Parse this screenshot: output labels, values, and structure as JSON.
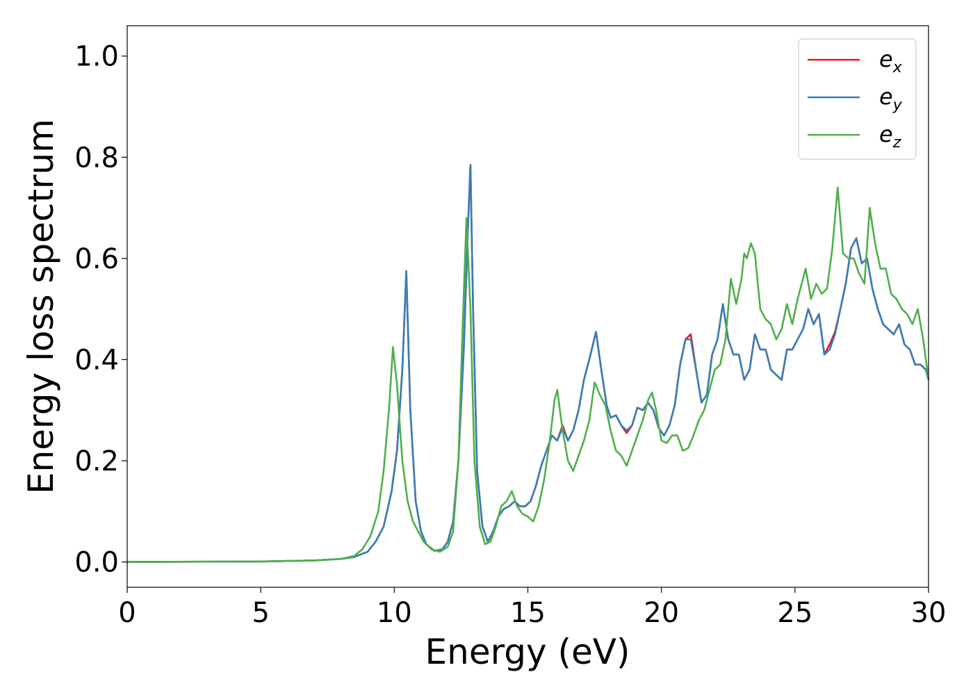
{
  "chart_data": {
    "type": "line",
    "xlabel": "Energy (eV)",
    "ylabel": "Energy loss spectrum",
    "xlim": [
      0,
      30
    ],
    "ylim": [
      -0.05,
      1.06
    ],
    "xticks": [
      "0",
      "5",
      "10",
      "15",
      "20",
      "25",
      "30"
    ],
    "yticks": [
      "0.0",
      "0.2",
      "0.4",
      "0.6",
      "0.8",
      "1.0"
    ],
    "grid": false,
    "legend_position": "top-right",
    "series": [
      {
        "name": "e",
        "subscript": "x",
        "color": "#e41a1c",
        "x": [
          0,
          5,
          7,
          8,
          8.5,
          9,
          9.3,
          9.6,
          9.9,
          10.1,
          10.3,
          10.45,
          10.6,
          10.8,
          11.0,
          11.2,
          11.5,
          11.8,
          12.0,
          12.2,
          12.4,
          12.6,
          12.75,
          12.85,
          12.95,
          13.1,
          13.3,
          13.5,
          13.7,
          13.9,
          14.1,
          14.3,
          14.5,
          14.7,
          14.9,
          15.1,
          15.3,
          15.5,
          15.7,
          15.9,
          16.1,
          16.3,
          16.5,
          16.7,
          16.9,
          17.1,
          17.3,
          17.55,
          17.75,
          17.95,
          18.1,
          18.3,
          18.5,
          18.7,
          18.9,
          19.1,
          19.3,
          19.5,
          19.7,
          19.9,
          20.1,
          20.3,
          20.5,
          20.7,
          20.9,
          21.1,
          21.3,
          21.5,
          21.7,
          21.9,
          22.1,
          22.3,
          22.5,
          22.7,
          22.9,
          23.1,
          23.3,
          23.5,
          23.7,
          23.9,
          24.1,
          24.3,
          24.5,
          24.7,
          24.9,
          25.1,
          25.3,
          25.5,
          25.7,
          25.9,
          26.1,
          26.3,
          26.5,
          26.7,
          26.9,
          27.1,
          27.3,
          27.5,
          27.7,
          27.9,
          28.1,
          28.3,
          28.5,
          28.7,
          28.9,
          29.1,
          29.3,
          29.5,
          29.7,
          29.9,
          30
        ],
        "y": [
          0.0,
          0.001,
          0.003,
          0.006,
          0.01,
          0.02,
          0.04,
          0.07,
          0.14,
          0.22,
          0.38,
          0.575,
          0.3,
          0.12,
          0.06,
          0.035,
          0.022,
          0.025,
          0.04,
          0.08,
          0.2,
          0.42,
          0.65,
          0.785,
          0.5,
          0.18,
          0.07,
          0.04,
          0.06,
          0.09,
          0.105,
          0.11,
          0.12,
          0.11,
          0.11,
          0.12,
          0.15,
          0.19,
          0.22,
          0.25,
          0.24,
          0.27,
          0.24,
          0.26,
          0.3,
          0.36,
          0.4,
          0.455,
          0.38,
          0.31,
          0.285,
          0.29,
          0.27,
          0.255,
          0.27,
          0.305,
          0.3,
          0.315,
          0.3,
          0.265,
          0.25,
          0.27,
          0.31,
          0.39,
          0.44,
          0.45,
          0.38,
          0.315,
          0.33,
          0.41,
          0.44,
          0.51,
          0.44,
          0.41,
          0.41,
          0.36,
          0.38,
          0.45,
          0.42,
          0.42,
          0.38,
          0.37,
          0.36,
          0.42,
          0.42,
          0.44,
          0.46,
          0.5,
          0.47,
          0.49,
          0.41,
          0.43,
          0.455,
          0.5,
          0.55,
          0.62,
          0.64,
          0.59,
          0.6,
          0.54,
          0.5,
          0.47,
          0.46,
          0.45,
          0.47,
          0.43,
          0.42,
          0.39,
          0.39,
          0.38,
          0.36
        ]
      },
      {
        "name": "e",
        "subscript": "y",
        "color": "#377eb8",
        "x": [
          0,
          5,
          7,
          8,
          8.5,
          9,
          9.3,
          9.6,
          9.9,
          10.1,
          10.3,
          10.45,
          10.6,
          10.8,
          11.0,
          11.2,
          11.5,
          11.8,
          12.0,
          12.2,
          12.4,
          12.6,
          12.75,
          12.85,
          12.95,
          13.1,
          13.3,
          13.5,
          13.7,
          13.9,
          14.1,
          14.3,
          14.5,
          14.7,
          14.9,
          15.1,
          15.3,
          15.5,
          15.7,
          15.9,
          16.1,
          16.3,
          16.5,
          16.7,
          16.9,
          17.1,
          17.3,
          17.55,
          17.75,
          17.95,
          18.1,
          18.3,
          18.5,
          18.7,
          18.9,
          19.1,
          19.3,
          19.5,
          19.7,
          19.9,
          20.1,
          20.3,
          20.5,
          20.7,
          20.9,
          21.1,
          21.3,
          21.5,
          21.7,
          21.9,
          22.1,
          22.3,
          22.5,
          22.7,
          22.9,
          23.1,
          23.3,
          23.5,
          23.7,
          23.9,
          24.1,
          24.3,
          24.5,
          24.7,
          24.9,
          25.1,
          25.3,
          25.5,
          25.7,
          25.9,
          26.1,
          26.3,
          26.5,
          26.7,
          26.9,
          27.1,
          27.3,
          27.5,
          27.7,
          27.9,
          28.1,
          28.3,
          28.5,
          28.7,
          28.9,
          29.1,
          29.3,
          29.5,
          29.7,
          29.9,
          30
        ],
        "y": [
          0.0,
          0.001,
          0.003,
          0.006,
          0.01,
          0.02,
          0.04,
          0.07,
          0.14,
          0.22,
          0.38,
          0.575,
          0.3,
          0.12,
          0.06,
          0.035,
          0.022,
          0.025,
          0.04,
          0.08,
          0.2,
          0.42,
          0.65,
          0.785,
          0.5,
          0.18,
          0.07,
          0.04,
          0.06,
          0.09,
          0.105,
          0.11,
          0.12,
          0.11,
          0.11,
          0.12,
          0.15,
          0.19,
          0.22,
          0.25,
          0.24,
          0.265,
          0.24,
          0.26,
          0.3,
          0.36,
          0.4,
          0.455,
          0.38,
          0.31,
          0.285,
          0.29,
          0.27,
          0.26,
          0.27,
          0.305,
          0.3,
          0.315,
          0.3,
          0.265,
          0.25,
          0.27,
          0.31,
          0.39,
          0.44,
          0.44,
          0.38,
          0.315,
          0.33,
          0.41,
          0.44,
          0.51,
          0.44,
          0.41,
          0.41,
          0.36,
          0.38,
          0.45,
          0.42,
          0.42,
          0.38,
          0.37,
          0.36,
          0.42,
          0.42,
          0.44,
          0.46,
          0.5,
          0.47,
          0.49,
          0.41,
          0.42,
          0.45,
          0.5,
          0.55,
          0.62,
          0.64,
          0.59,
          0.6,
          0.54,
          0.5,
          0.47,
          0.46,
          0.45,
          0.47,
          0.43,
          0.42,
          0.39,
          0.39,
          0.38,
          0.36
        ]
      },
      {
        "name": "e",
        "subscript": "z",
        "color": "#4daf4a",
        "x": [
          0,
          5,
          7,
          8,
          8.5,
          8.8,
          9.1,
          9.4,
          9.6,
          9.8,
          9.95,
          10.1,
          10.3,
          10.5,
          10.7,
          10.9,
          11.1,
          11.4,
          11.7,
          12.0,
          12.2,
          12.4,
          12.55,
          12.7,
          12.85,
          13.0,
          13.2,
          13.4,
          13.6,
          13.8,
          14.0,
          14.2,
          14.4,
          14.6,
          14.8,
          15.0,
          15.2,
          15.4,
          15.6,
          15.8,
          16.0,
          16.1,
          16.3,
          16.5,
          16.7,
          16.9,
          17.1,
          17.3,
          17.5,
          17.7,
          17.9,
          18.1,
          18.3,
          18.5,
          18.7,
          18.9,
          19.1,
          19.3,
          19.5,
          19.65,
          19.8,
          20.0,
          20.2,
          20.4,
          20.6,
          20.8,
          21.0,
          21.2,
          21.4,
          21.6,
          21.8,
          22.0,
          22.2,
          22.4,
          22.6,
          22.8,
          23.0,
          23.1,
          23.2,
          23.35,
          23.5,
          23.7,
          23.9,
          24.1,
          24.3,
          24.5,
          24.7,
          24.9,
          25.1,
          25.3,
          25.4,
          25.6,
          25.8,
          26.0,
          26.2,
          26.4,
          26.6,
          26.8,
          27.0,
          27.2,
          27.4,
          27.6,
          27.8,
          28.0,
          28.2,
          28.4,
          28.6,
          28.8,
          29.0,
          29.2,
          29.4,
          29.6,
          29.8,
          30
        ],
        "y": [
          0.0,
          0.001,
          0.003,
          0.006,
          0.012,
          0.025,
          0.05,
          0.1,
          0.18,
          0.3,
          0.425,
          0.35,
          0.2,
          0.12,
          0.08,
          0.06,
          0.04,
          0.025,
          0.02,
          0.03,
          0.06,
          0.2,
          0.45,
          0.68,
          0.5,
          0.2,
          0.07,
          0.035,
          0.04,
          0.07,
          0.11,
          0.12,
          0.14,
          0.11,
          0.095,
          0.09,
          0.08,
          0.11,
          0.16,
          0.23,
          0.32,
          0.34,
          0.26,
          0.2,
          0.18,
          0.21,
          0.24,
          0.28,
          0.355,
          0.33,
          0.31,
          0.26,
          0.22,
          0.21,
          0.19,
          0.22,
          0.25,
          0.28,
          0.32,
          0.335,
          0.3,
          0.24,
          0.235,
          0.25,
          0.25,
          0.22,
          0.225,
          0.25,
          0.28,
          0.3,
          0.34,
          0.38,
          0.39,
          0.44,
          0.56,
          0.51,
          0.56,
          0.61,
          0.6,
          0.63,
          0.61,
          0.5,
          0.48,
          0.47,
          0.44,
          0.46,
          0.51,
          0.47,
          0.52,
          0.56,
          0.58,
          0.52,
          0.55,
          0.53,
          0.54,
          0.62,
          0.74,
          0.61,
          0.6,
          0.6,
          0.57,
          0.55,
          0.7,
          0.63,
          0.58,
          0.58,
          0.53,
          0.52,
          0.5,
          0.49,
          0.47,
          0.5,
          0.44,
          0.36
        ]
      }
    ]
  }
}
